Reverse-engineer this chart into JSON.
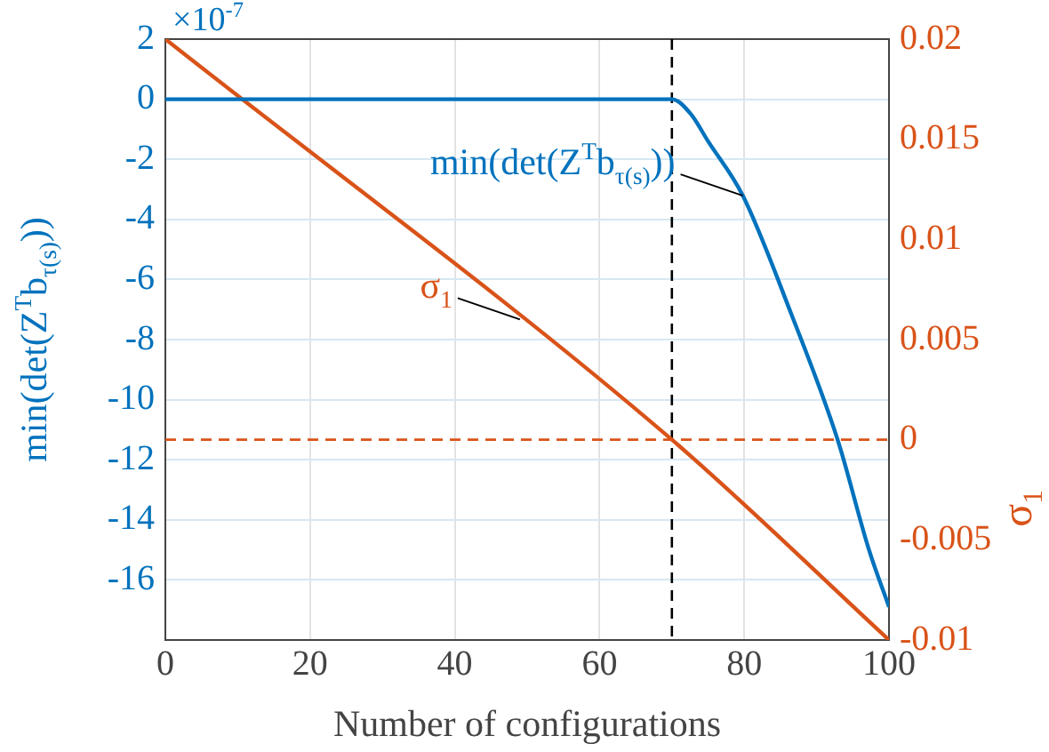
{
  "chart_data": {
    "type": "line",
    "xlabel": "Number of configurations",
    "ylabel": "min(det(Z$^{T}$b$_{τ(s)}$))",
    "y2label": "σ$_{1}$",
    "xlim": [
      0,
      100
    ],
    "xticks": [
      0,
      20,
      40,
      60,
      80,
      100
    ],
    "ylim": [
      -18,
      2
    ],
    "yticks": [
      2,
      0,
      -2,
      -4,
      -6,
      -8,
      -10,
      -12,
      -14,
      -16
    ],
    "y2lim": [
      -0.01,
      0.02
    ],
    "y2ticks": [
      0.02,
      0.015,
      0.01,
      0.005,
      0,
      -0.005,
      -0.01
    ],
    "grid": true,
    "line_style": "solid",
    "marker": "none",
    "series": [
      {
        "color": "#0072bd",
        "x": [
          0,
          70,
          72.6,
          75,
          79.8,
          86.5,
          92.9,
          97.2,
          100
        ],
        "values": [
          0,
          0,
          -0.49,
          -1.4,
          -3.21,
          -7.15,
          -11.33,
          -14.97,
          -16.9
        ]
      },
      {
        "color": "#d95319",
        "axis": "y2",
        "x": [
          0,
          70,
          100
        ],
        "values": [
          0.02,
          0,
          -0.01
        ]
      }
    ],
    "ref_lines": [
      {
        "axis": "x",
        "value": 70,
        "color": "#000000",
        "line_style": "dashed"
      },
      {
        "axis": "y2",
        "value": 0,
        "color": "#d95319",
        "line_style": "dashed"
      }
    ],
    "annotations": [
      "×10$^{-7}$",
      {
        "text": "min(det(Z$^{T}$b$_{τ(s)}$))",
        "x": 79.8,
        "y": -3.21
      },
      {
        "text": "σ$_{1}$",
        "x": 49,
        "y": -7.33
      }
    ]
  }
}
